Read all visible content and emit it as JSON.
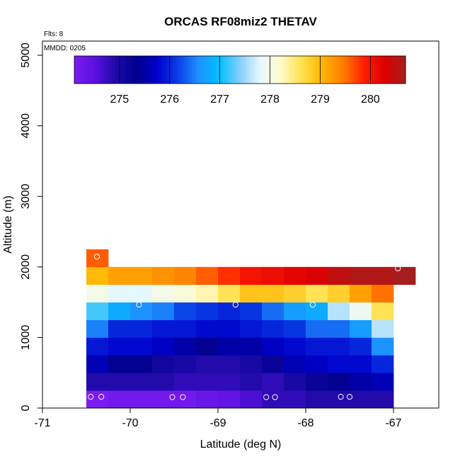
{
  "chart_data": {
    "type": "heatmap",
    "title": "ORCAS RF08miz2 THETAV",
    "xlabel": "Latitude (deg N)",
    "ylabel": "Altitude (m)",
    "annotations": {
      "flights": "Flts: 8",
      "date": "MMDD: 0205"
    },
    "xlim": [
      -71,
      -66.5
    ],
    "ylim": [
      0,
      5200
    ],
    "xticks": [
      -71,
      -70,
      -69,
      -68,
      -67
    ],
    "yticks": [
      0,
      1000,
      2000,
      3000,
      4000,
      5000
    ],
    "cell_width_deg": 0.25,
    "cell_height_m": 250,
    "colorbar": {
      "range": [
        274.1,
        280.7
      ],
      "ticks": [
        275,
        276,
        277,
        278,
        279,
        280
      ],
      "colors": [
        "#7a1cf0",
        "#5a10e0",
        "#1e0aa8",
        "#00008e",
        "#0000cc",
        "#0a3ee6",
        "#1e90ff",
        "#00bfff",
        "#87cefa",
        "#e8f8ff",
        "#fffac8",
        "#ffe04a",
        "#ffb400",
        "#ff7c00",
        "#ff1e00",
        "#dc0000",
        "#a41e1e"
      ]
    },
    "x_starts": [
      -70.5,
      -70.25,
      -70.0,
      -69.75,
      -69.5,
      -69.25,
      -69.0,
      -68.75,
      -68.5,
      -68.25,
      -68.0,
      -67.75,
      -67.5,
      -67.25,
      -67.0
    ],
    "rows": [
      {
        "alt_bottom": 0,
        "values": [
          274.1,
          274.2,
          274.2,
          274.2,
          274.2,
          274.3,
          274.4,
          274.6,
          274.8,
          274.8,
          274.9,
          274.9,
          274.9,
          274.9,
          null
        ]
      },
      {
        "alt_bottom": 250,
        "values": [
          274.9,
          274.9,
          274.9,
          274.9,
          274.8,
          274.8,
          274.8,
          274.9,
          274.8,
          275.0,
          275.2,
          275.3,
          275.5,
          275.6,
          null
        ]
      },
      {
        "alt_bottom": 500,
        "values": [
          275.6,
          275.3,
          275.3,
          275.1,
          275.0,
          274.9,
          274.9,
          275.0,
          275.2,
          275.6,
          275.7,
          275.8,
          275.8,
          276.0,
          null
        ]
      },
      {
        "alt_bottom": 750,
        "values": [
          275.9,
          275.8,
          275.8,
          275.7,
          275.5,
          275.3,
          275.5,
          275.5,
          275.7,
          275.8,
          275.9,
          275.9,
          276.0,
          276.6,
          null
        ]
      },
      {
        "alt_bottom": 1000,
        "values": [
          276.5,
          276.0,
          276.0,
          275.9,
          275.9,
          275.8,
          275.8,
          275.9,
          276.0,
          276.1,
          276.4,
          276.4,
          276.7,
          277.6,
          null
        ]
      },
      {
        "alt_bottom": 1250,
        "values": [
          277.2,
          276.8,
          276.6,
          276.5,
          276.2,
          276.1,
          276.0,
          276.1,
          276.4,
          276.7,
          276.8,
          277.6,
          277.9,
          278.6,
          null
        ]
      },
      {
        "alt_bottom": 1500,
        "values": [
          278.0,
          277.8,
          277.8,
          278.0,
          278.1,
          278.3,
          278.6,
          278.9,
          278.9,
          278.8,
          278.6,
          278.8,
          279.2,
          279.5,
          null
        ]
      },
      {
        "alt_bottom": 1750,
        "values": [
          279.0,
          279.2,
          279.2,
          279.3,
          279.4,
          279.6,
          279.8,
          280.0,
          280.1,
          280.2,
          280.3,
          280.5,
          280.6,
          280.6,
          280.7
        ]
      },
      {
        "alt_bottom": 2000,
        "values": [
          279.6,
          null,
          null,
          null,
          null,
          null,
          null,
          null,
          null,
          null,
          null,
          null,
          null,
          null,
          null
        ]
      }
    ],
    "flight_markers": [
      {
        "lat": -70.45,
        "alt": 160
      },
      {
        "lat": -70.33,
        "alt": 160
      },
      {
        "lat": -69.52,
        "alt": 155
      },
      {
        "lat": -69.4,
        "alt": 155
      },
      {
        "lat": -68.45,
        "alt": 155
      },
      {
        "lat": -68.35,
        "alt": 155
      },
      {
        "lat": -67.6,
        "alt": 160
      },
      {
        "lat": -67.5,
        "alt": 160
      },
      {
        "lat": -70.38,
        "alt": 2145
      },
      {
        "lat": -69.9,
        "alt": 1465
      },
      {
        "lat": -68.8,
        "alt": 1465
      },
      {
        "lat": -67.92,
        "alt": 1465
      },
      {
        "lat": -66.95,
        "alt": 1980
      }
    ]
  }
}
